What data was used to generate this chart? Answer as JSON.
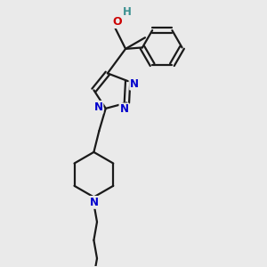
{
  "bg_color": "#eaeaea",
  "bond_color": "#1a1a1a",
  "nitrogen_color": "#0000cc",
  "oxygen_color": "#cc0000",
  "oh_h_color": "#3a9090",
  "lw": 1.6,
  "figsize": [
    3.0,
    3.0
  ],
  "dpi": 100,
  "xlim": [
    0.1,
    0.9
  ],
  "ylim": [
    0.0,
    1.0
  ]
}
